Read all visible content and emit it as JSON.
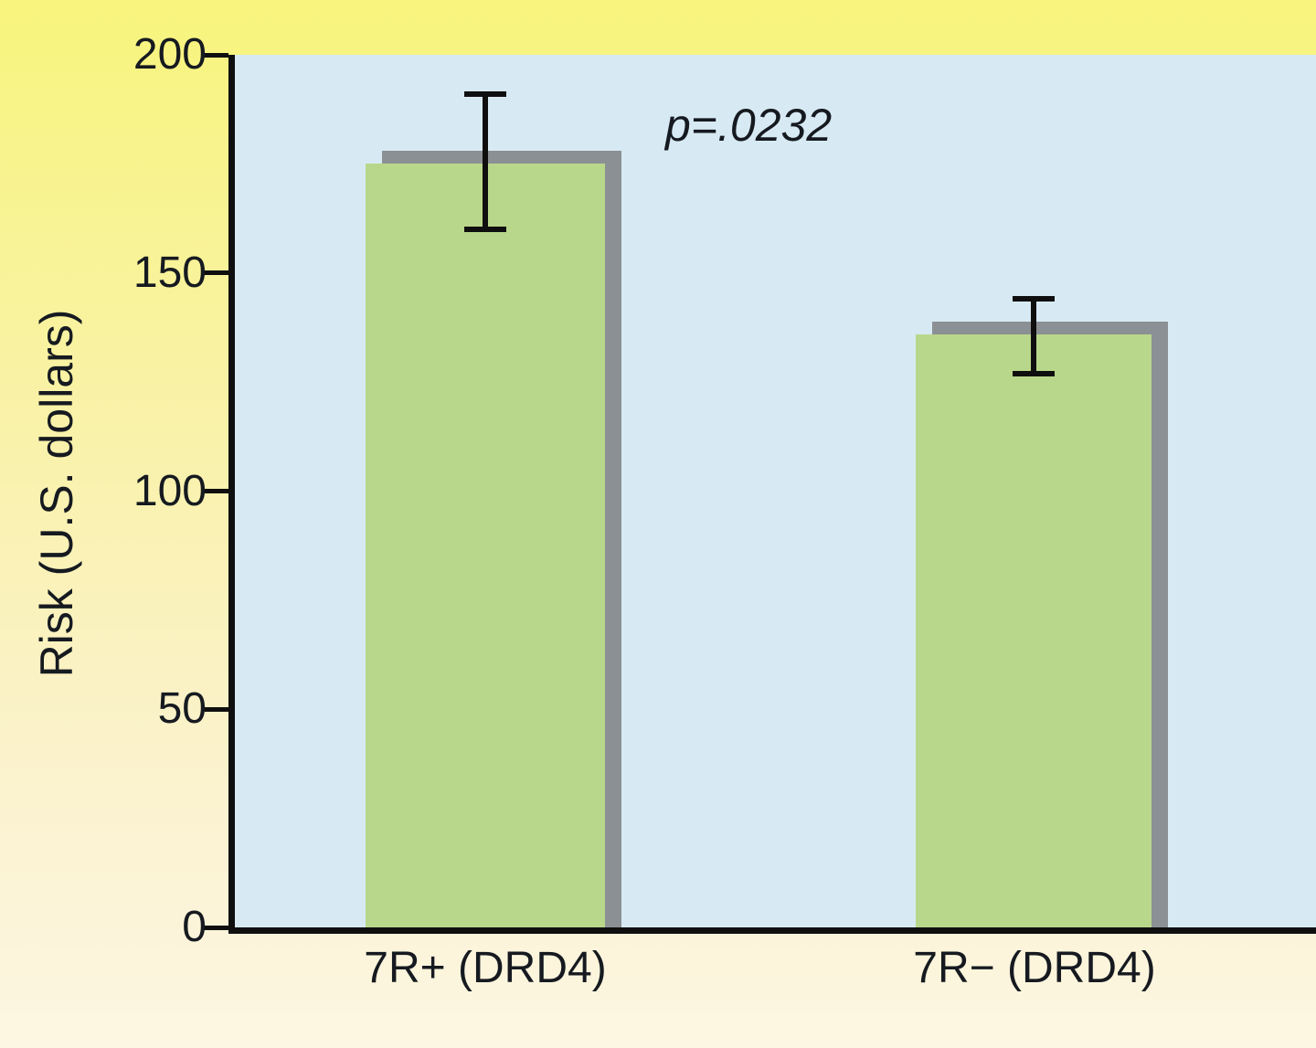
{
  "chart_data": {
    "type": "bar",
    "title": "",
    "xlabel": "",
    "ylabel": "Risk (U.S. dollars)",
    "ylim": [
      0,
      200
    ],
    "yticks": [
      0,
      50,
      100,
      150,
      200
    ],
    "categories": [
      "7R+ (DRD4)",
      "7R− (DRD4)"
    ],
    "values": [
      175,
      136
    ],
    "error_bars": [
      {
        "low": 160,
        "high": 191
      },
      {
        "low": 127,
        "high": 144
      }
    ],
    "annotation": "p=.0232",
    "grid": false,
    "legend": null,
    "bar_color": "#b9d78b",
    "bar_shadow_color": "#8b9094",
    "plot_background": "#d7eaf4",
    "page_background_top": "#f8f47d",
    "page_background_bottom": "#fdf6e2"
  }
}
